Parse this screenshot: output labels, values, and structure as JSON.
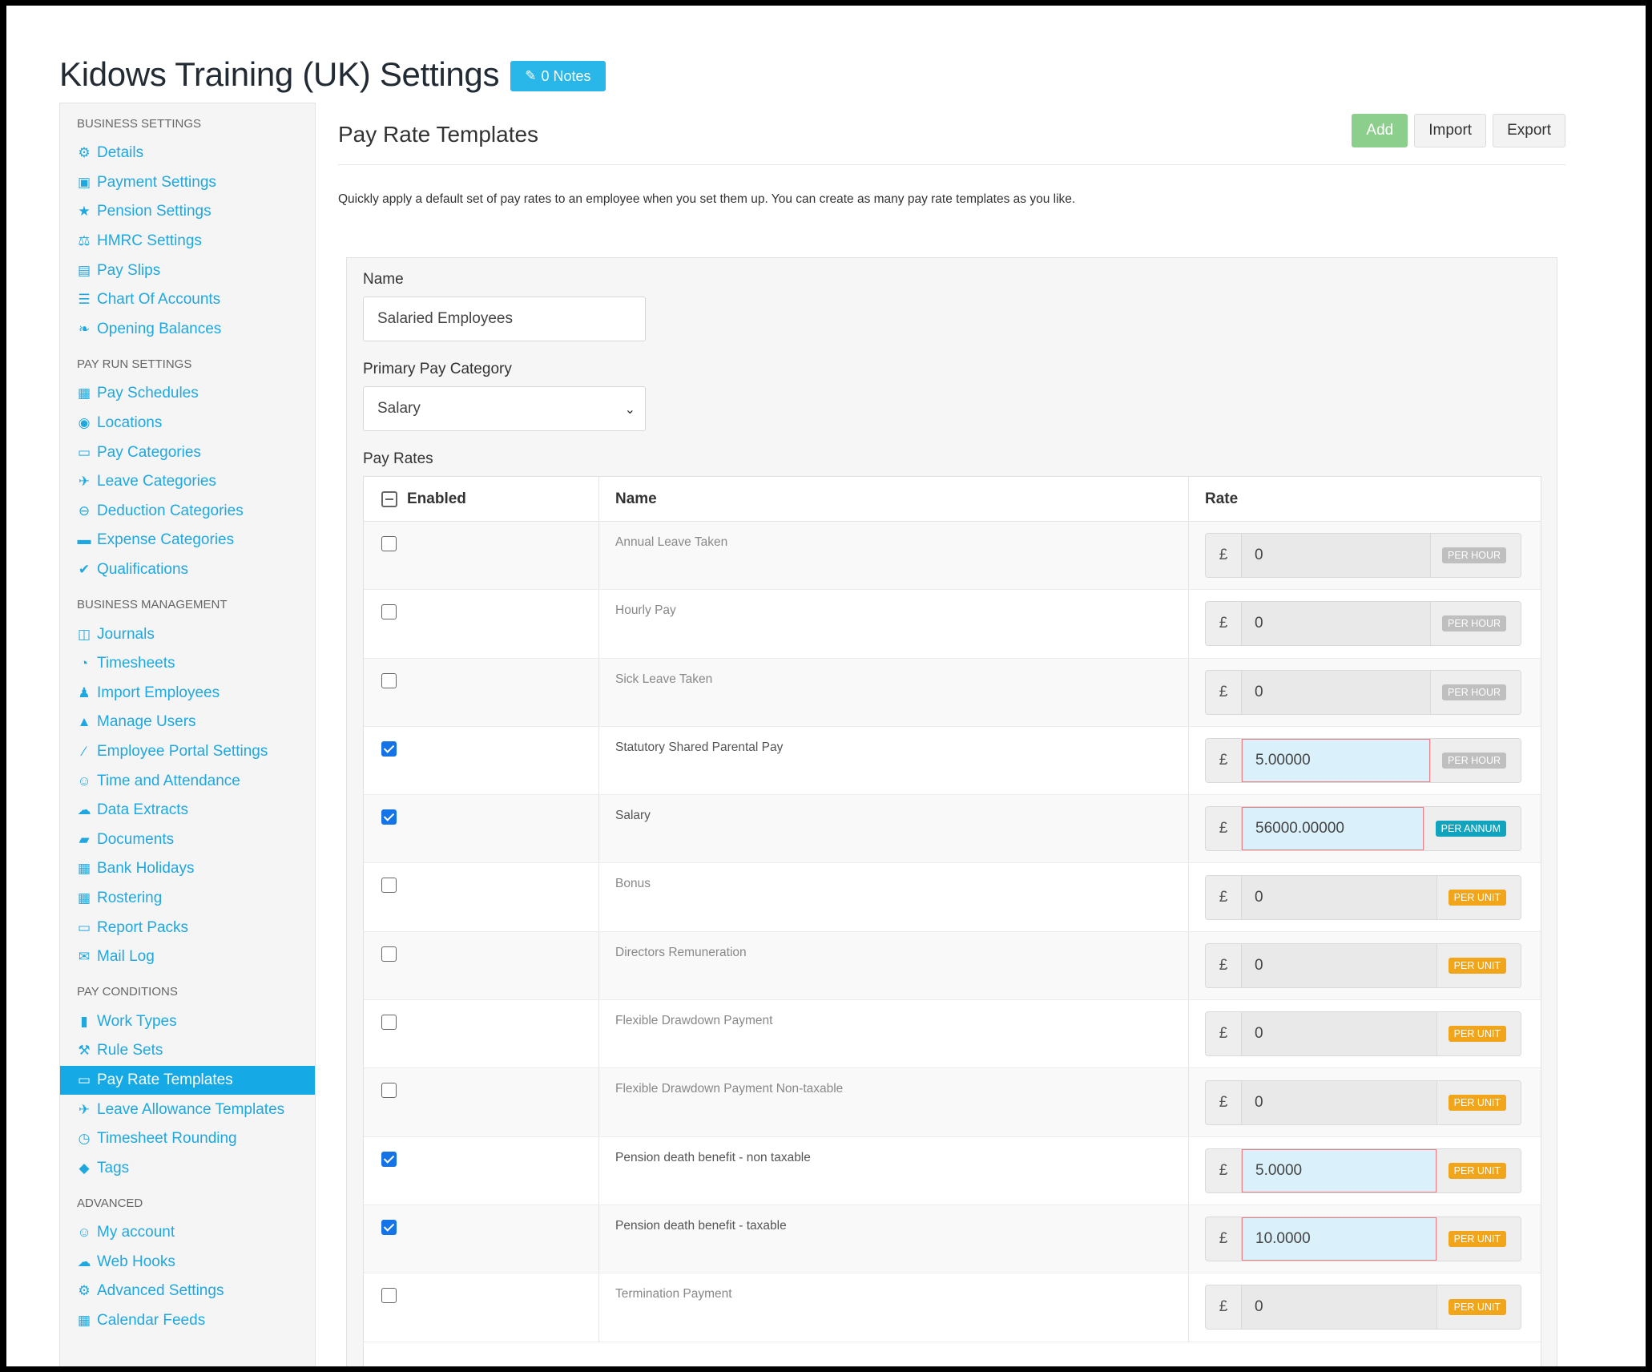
{
  "page": {
    "title": "Kidows Training (UK) Settings",
    "notes_label": "0 Notes"
  },
  "sidebar": {
    "sections": [
      {
        "heading": "BUSINESS SETTINGS",
        "items": [
          {
            "label": "Details",
            "icon": "gear-icon",
            "glyph": "⚙"
          },
          {
            "label": "Payment Settings",
            "icon": "save-icon",
            "glyph": "▣"
          },
          {
            "label": "Pension Settings",
            "icon": "star-icon",
            "glyph": "★"
          },
          {
            "label": "HMRC Settings",
            "icon": "balance-scale-icon",
            "glyph": "⚖"
          },
          {
            "label": "Pay Slips",
            "icon": "file-icon",
            "glyph": "▤"
          },
          {
            "label": "Chart Of Accounts",
            "icon": "list-icon",
            "glyph": "☰"
          },
          {
            "label": "Opening Balances",
            "icon": "leaf-icon",
            "glyph": "❧"
          }
        ]
      },
      {
        "heading": "PAY RUN SETTINGS",
        "items": [
          {
            "label": "Pay Schedules",
            "icon": "calendar-icon",
            "glyph": "▦"
          },
          {
            "label": "Locations",
            "icon": "globe-icon",
            "glyph": "◉"
          },
          {
            "label": "Pay Categories",
            "icon": "money-icon",
            "glyph": "▭"
          },
          {
            "label": "Leave Categories",
            "icon": "plane-icon",
            "glyph": "✈"
          },
          {
            "label": "Deduction Categories",
            "icon": "minus-circle-icon",
            "glyph": "⊖"
          },
          {
            "label": "Expense Categories",
            "icon": "archive-icon",
            "glyph": "▬"
          },
          {
            "label": "Qualifications",
            "icon": "check-icon",
            "glyph": "✔"
          }
        ]
      },
      {
        "heading": "BUSINESS MANAGEMENT",
        "items": [
          {
            "label": "Journals",
            "icon": "book-open-icon",
            "glyph": "◫"
          },
          {
            "label": "Timesheets",
            "icon": "clock-icon",
            "glyph": "◔"
          },
          {
            "label": "Import Employees",
            "icon": "users-icon",
            "glyph": "♟"
          },
          {
            "label": "Manage Users",
            "icon": "lock-icon",
            "glyph": "▲"
          },
          {
            "label": "Employee Portal Settings",
            "icon": "magic-wand-icon",
            "glyph": "⁄"
          },
          {
            "label": "Time and Attendance",
            "icon": "user-clock-icon",
            "glyph": "☺"
          },
          {
            "label": "Data Extracts",
            "icon": "cloud-download-icon",
            "glyph": "☁"
          },
          {
            "label": "Documents",
            "icon": "folder-icon",
            "glyph": "▰"
          },
          {
            "label": "Bank Holidays",
            "icon": "calendar-icon",
            "glyph": "▦"
          },
          {
            "label": "Rostering",
            "icon": "calendar-check-icon",
            "glyph": "▦"
          },
          {
            "label": "Report Packs",
            "icon": "folder-open-icon",
            "glyph": "▭"
          },
          {
            "label": "Mail Log",
            "icon": "envelope-icon",
            "glyph": "✉"
          }
        ]
      },
      {
        "heading": "PAY CONDITIONS",
        "items": [
          {
            "label": "Work Types",
            "icon": "book-icon",
            "glyph": "▮"
          },
          {
            "label": "Rule Sets",
            "icon": "gavel-icon",
            "glyph": "⚒"
          },
          {
            "label": "Pay Rate Templates",
            "icon": "money-icon",
            "glyph": "▭",
            "active": true
          },
          {
            "label": "Leave Allowance Templates",
            "icon": "plane-icon",
            "glyph": "✈"
          },
          {
            "label": "Timesheet Rounding",
            "icon": "clock-icon",
            "glyph": "◷"
          },
          {
            "label": "Tags",
            "icon": "tag-icon",
            "glyph": "◆"
          }
        ]
      },
      {
        "heading": "ADVANCED",
        "items": [
          {
            "label": "My account",
            "icon": "user-circle-icon",
            "glyph": "☺"
          },
          {
            "label": "Web Hooks",
            "icon": "cloud-icon",
            "glyph": "☁"
          },
          {
            "label": "Advanced Settings",
            "icon": "gear-icon",
            "glyph": "⚙"
          },
          {
            "label": "Calendar Feeds",
            "icon": "calendar-icon",
            "glyph": "▦"
          }
        ]
      }
    ]
  },
  "main": {
    "title": "Pay Rate Templates",
    "add_label": "Add",
    "import_label": "Import",
    "export_label": "Export",
    "description": "Quickly apply a default set of pay rates to an employee when you set them up. You can create as many pay rate templates as you like.",
    "form": {
      "name_label": "Name",
      "name_value": "Salaried Employees",
      "category_label": "Primary Pay Category",
      "category_value": "Salary",
      "rates_label": "Pay Rates",
      "columns": {
        "enabled": "Enabled",
        "name": "Name",
        "rate": "Rate"
      },
      "currency": "£",
      "rows": [
        {
          "name": "Annual Leave Taken",
          "enabled": false,
          "value": "0",
          "unit": "PER HOUR",
          "unit_kind": "hour"
        },
        {
          "name": "Hourly Pay",
          "enabled": false,
          "value": "0",
          "unit": "PER HOUR",
          "unit_kind": "hour"
        },
        {
          "name": "Sick Leave Taken",
          "enabled": false,
          "value": "0",
          "unit": "PER HOUR",
          "unit_kind": "hour"
        },
        {
          "name": "Statutory Shared Parental Pay",
          "enabled": true,
          "value": "5.00000",
          "unit": "PER HOUR",
          "unit_kind": "hour"
        },
        {
          "name": "Salary",
          "enabled": true,
          "value": "56000.00000",
          "unit": "PER ANNUM",
          "unit_kind": "annum"
        },
        {
          "name": "Bonus",
          "enabled": false,
          "value": "0",
          "unit": "PER UNIT",
          "unit_kind": "unit"
        },
        {
          "name": "Directors Remuneration",
          "enabled": false,
          "value": "0",
          "unit": "PER UNIT",
          "unit_kind": "unit"
        },
        {
          "name": "Flexible Drawdown Payment",
          "enabled": false,
          "value": "0",
          "unit": "PER UNIT",
          "unit_kind": "unit"
        },
        {
          "name": "Flexible Drawdown Payment Non-taxable",
          "enabled": false,
          "value": "0",
          "unit": "PER UNIT",
          "unit_kind": "unit"
        },
        {
          "name": "Pension death benefit - non taxable",
          "enabled": true,
          "value": "5.0000",
          "unit": "PER UNIT",
          "unit_kind": "unit"
        },
        {
          "name": "Pension death benefit - taxable",
          "enabled": true,
          "value": "10.0000",
          "unit": "PER UNIT",
          "unit_kind": "unit"
        },
        {
          "name": "Termination Payment",
          "enabled": false,
          "value": "0",
          "unit": "PER UNIT",
          "unit_kind": "unit"
        }
      ]
    }
  }
}
